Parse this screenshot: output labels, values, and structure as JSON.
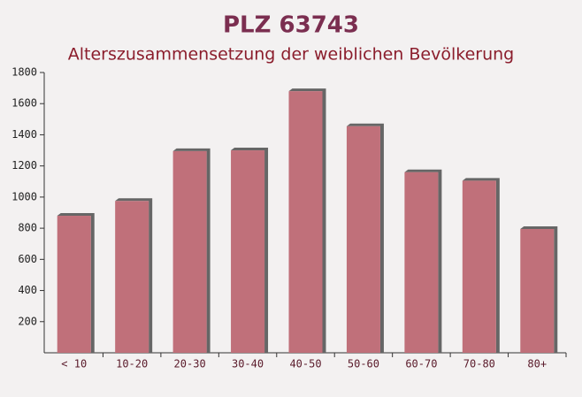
{
  "chart_data": {
    "type": "bar",
    "title": "PLZ 63743",
    "subtitle": "Alterszusammensetzung der weiblichen Bevölkerung",
    "categories": [
      "< 10",
      "10-20",
      "20-30",
      "30-40",
      "40-50",
      "50-60",
      "60-70",
      "70-80",
      "80+"
    ],
    "values": [
      880,
      975,
      1295,
      1300,
      1680,
      1455,
      1160,
      1105,
      795
    ],
    "color": "#c0707a",
    "ylim": [
      0,
      1800
    ],
    "yticks": [
      200,
      400,
      600,
      800,
      1000,
      1200,
      1400,
      1600,
      1800
    ]
  }
}
